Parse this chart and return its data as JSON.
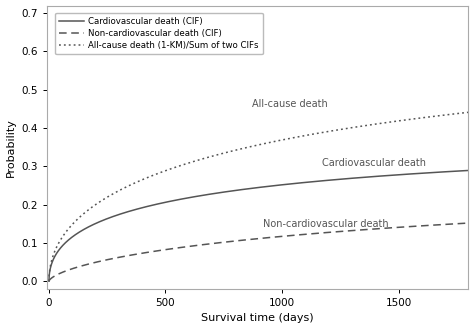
{
  "title": "",
  "xlabel": "Survival time (days)",
  "ylabel": "Probability",
  "xlim": [
    -10,
    1800
  ],
  "ylim": [
    -0.02,
    0.72
  ],
  "yticks": [
    0.0,
    0.1,
    0.2,
    0.3,
    0.4,
    0.5,
    0.6,
    0.7
  ],
  "xticks": [
    0,
    500,
    1000,
    1500
  ],
  "line_color": "#555555",
  "background_color": "#ffffff",
  "legend_entries": [
    "Cardiovascular death (CIF)",
    "Non-cardiovascular death (CIF)",
    "All-cause death (1-KM)/Sum of two CIFs"
  ],
  "labels": {
    "all_cause": "All-cause death",
    "cardiovascular": "Cardiovascular death",
    "non_cardiovascular": "Non-cardiovascular death"
  },
  "label_positions": {
    "all_cause": [
      870,
      0.462
    ],
    "cardiovascular": [
      1170,
      0.308
    ],
    "non_cardiovascular": [
      920,
      0.15
    ]
  },
  "curves": {
    "cardio": {
      "scale": 800,
      "shape": 0.48,
      "amplitude": 0.375
    },
    "noncardio": {
      "scale": 2200,
      "shape": 0.65,
      "amplitude": 0.26
    }
  },
  "max_time": 1800
}
